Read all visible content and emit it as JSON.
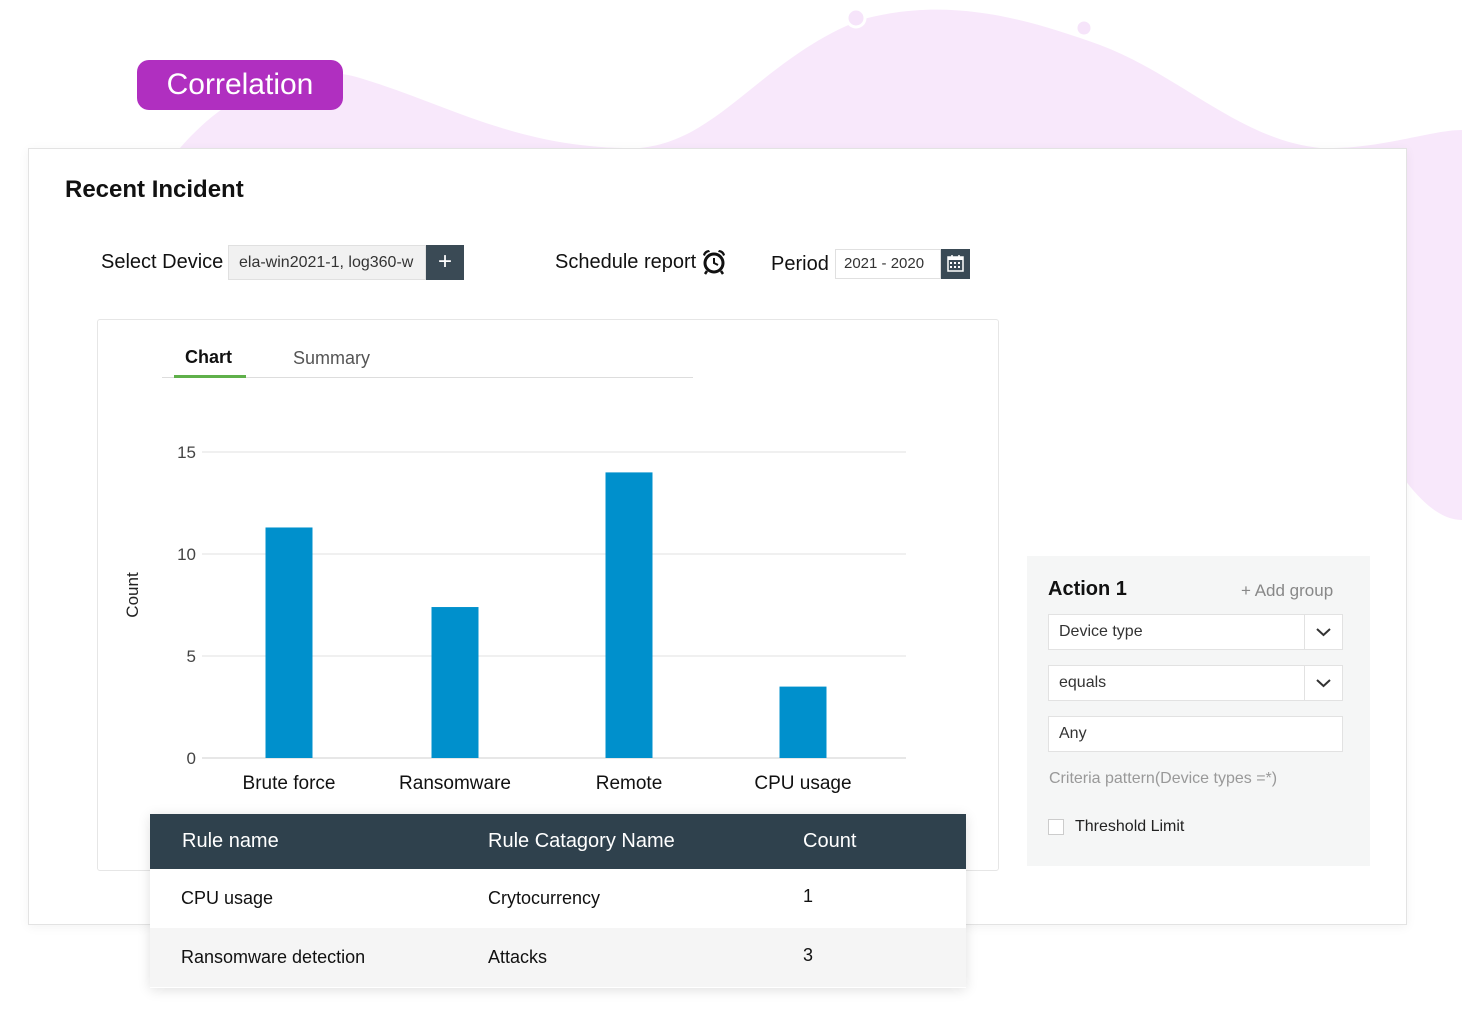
{
  "header": {
    "badge": "Correlation"
  },
  "card": {
    "title": "Recent Incident"
  },
  "controls": {
    "select_device_label": "Select Device",
    "device_value": "ela-win2021-1, log360-w",
    "add_icon": "plus-icon",
    "schedule_label": "Schedule report",
    "schedule_icon": "alarm-clock-icon",
    "period_label": "Period",
    "period_value": "2021 - 2020",
    "calendar_icon": "calendar-icon"
  },
  "tabs": [
    {
      "label": "Chart",
      "active": true
    },
    {
      "label": "Summary",
      "active": false
    }
  ],
  "colors": {
    "badge": "#b02fc0",
    "bar": "#0090cc",
    "header_dark": "#2f414d",
    "tab_active": "#5fb04a"
  },
  "chart_data": {
    "type": "bar",
    "categories": [
      "Brute force",
      "Ransomware",
      "Remote",
      "CPU usage"
    ],
    "values": [
      11.3,
      7.4,
      14,
      3.5
    ],
    "ylabel": "Count",
    "xlabel": "",
    "ylim": [
      0,
      15
    ],
    "yticks": [
      0,
      5,
      10,
      15
    ],
    "grid": true
  },
  "table": {
    "headers": [
      "Rule name",
      "Rule Catagory Name",
      "Count"
    ],
    "rows": [
      [
        "CPU usage",
        "Crytocurrency",
        "1"
      ],
      [
        "Ransomware detection",
        "Attacks",
        "3"
      ]
    ]
  },
  "action_panel": {
    "title": "Action 1",
    "add_group": "+ Add group",
    "field_select": "Device type",
    "operator_select": "equals",
    "value_input": "Any",
    "criteria": "Criteria pattern(Device types =*)",
    "threshold_label": "Threshold Limit",
    "threshold_checked": false
  }
}
